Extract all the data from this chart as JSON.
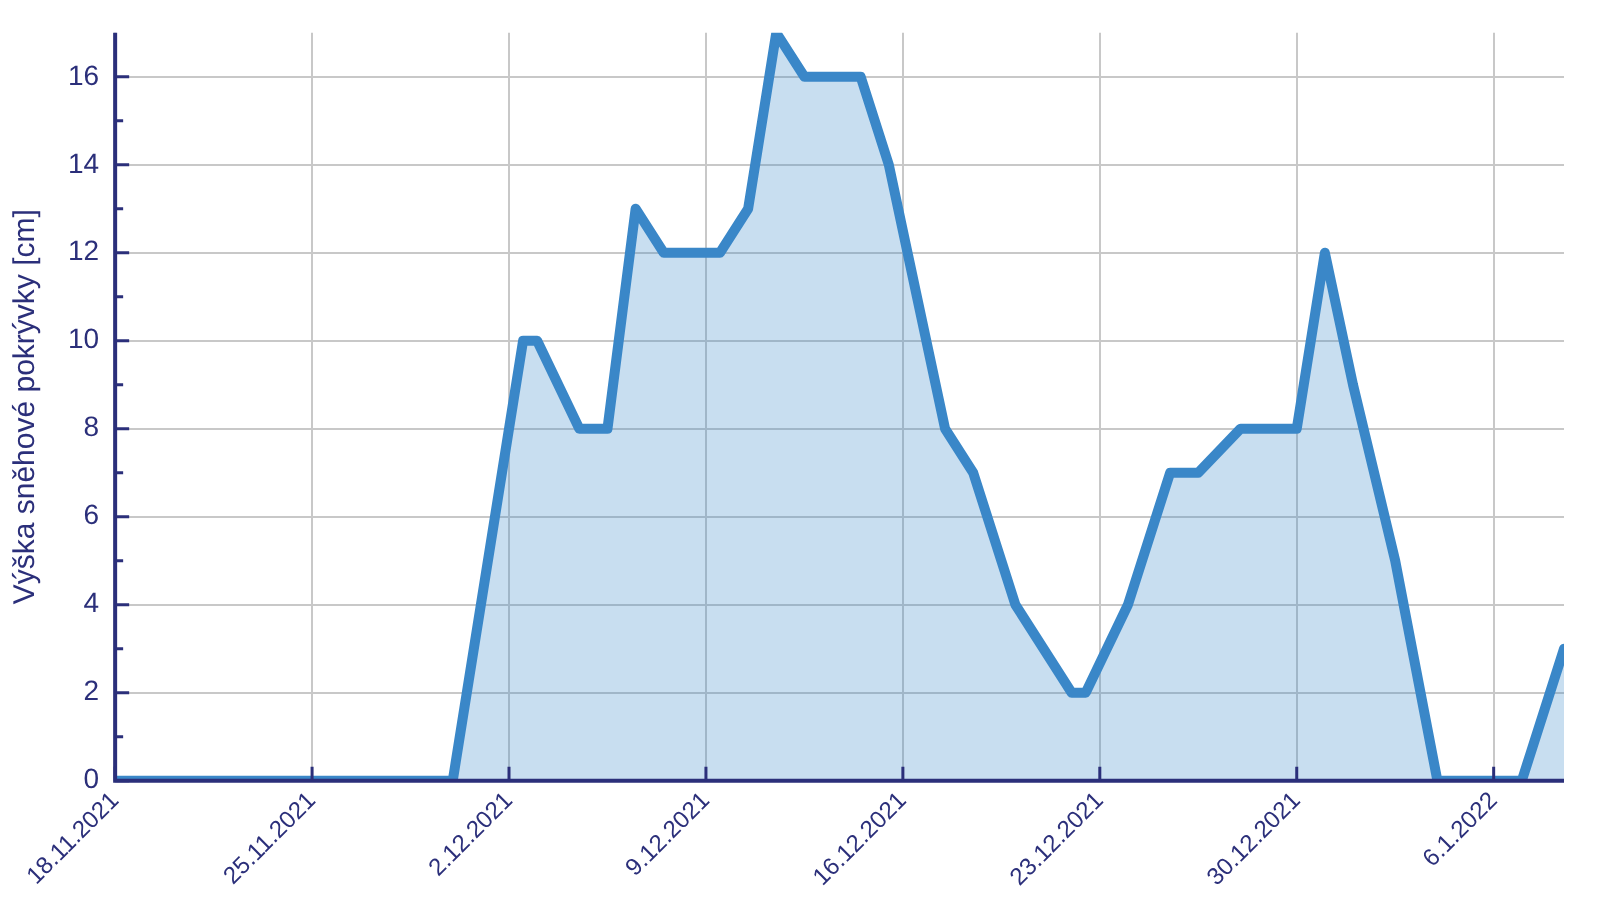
{
  "chart_data": {
    "type": "area",
    "ylabel": "Výška sněhové pokrývky [cm]",
    "x": [
      "2021-11-18T00:00",
      "2021-11-30T00:00",
      "2021-12-02T12:00",
      "2021-12-03T00:00",
      "2021-12-04T12:00",
      "2021-12-05T12:00",
      "2021-12-06T12:00",
      "2021-12-07T12:00",
      "2021-12-09T12:00",
      "2021-12-10T12:00",
      "2021-12-11T12:00",
      "2021-12-12T12:00",
      "2021-12-14T12:00",
      "2021-12-15T12:00",
      "2021-12-16T12:00",
      "2021-12-17T12:00",
      "2021-12-18T12:00",
      "2021-12-19T12:00",
      "2021-12-20T00:00",
      "2021-12-22T00:00",
      "2021-12-22T12:00",
      "2021-12-24T00:00",
      "2021-12-25T12:00",
      "2021-12-26T12:00",
      "2021-12-28T00:00",
      "2021-12-30T00:00",
      "2021-12-31T00:00",
      "2022-01-01T00:00",
      "2022-01-02T12:00",
      "2022-01-04T00:00",
      "2022-01-07T00:00",
      "2022-01-08T12:00"
    ],
    "series": [
      {
        "color": "#3a87c8",
        "values": [
          0,
          0,
          10,
          10,
          8,
          8,
          13,
          12,
          12,
          13,
          17,
          16,
          16,
          14,
          11,
          8,
          7,
          5,
          4,
          2,
          2,
          4,
          7,
          7,
          8,
          8,
          12,
          9,
          5,
          0,
          0,
          3
        ]
      }
    ],
    "xlim": [
      "2021-11-18T00:00",
      "2022-01-08T12:00"
    ],
    "xticks": [
      {
        "value": "2021-11-18",
        "label": "18.11.2021"
      },
      {
        "value": "2021-11-25",
        "label": "25.11.2021"
      },
      {
        "value": "2021-12-02",
        "label": "2.12.2021"
      },
      {
        "value": "2021-12-09",
        "label": "9.12.2021"
      },
      {
        "value": "2021-12-16",
        "label": "16.12.2021"
      },
      {
        "value": "2021-12-23",
        "label": "23.12.2021"
      },
      {
        "value": "2021-12-30",
        "label": "30.12.2021"
      },
      {
        "value": "2022-01-06",
        "label": "6.1.2022"
      }
    ],
    "ylim": [
      0,
      17
    ],
    "yticks": [
      0,
      {
        "value": 1,
        "label": null
      },
      2,
      {
        "value": 3,
        "label": null
      },
      4,
      {
        "value": 5,
        "label": null
      },
      6,
      {
        "value": 7,
        "label": null
      },
      8,
      {
        "value": 9,
        "label": null
      },
      10,
      {
        "value": 11,
        "label": null
      },
      12,
      {
        "value": 13,
        "label": null
      },
      14,
      {
        "value": 15,
        "label": null
      },
      16
    ],
    "grid": true
  }
}
